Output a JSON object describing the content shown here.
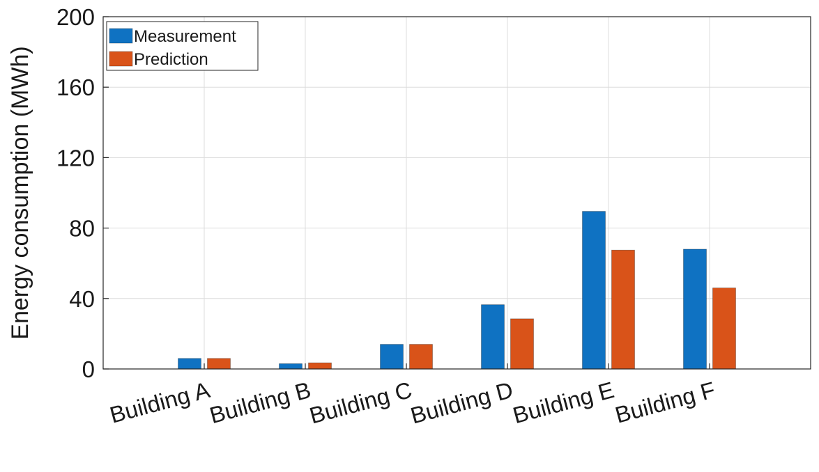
{
  "chart_data": {
    "type": "bar",
    "categories": [
      "Building A",
      "Building B",
      "Building C",
      "Building D",
      "Building E",
      "Building F"
    ],
    "series": [
      {
        "name": "Measurement",
        "color": "#0f72c2",
        "values": [
          6,
          3,
          14,
          36.5,
          89.5,
          68
        ]
      },
      {
        "name": "Prediction",
        "color": "#d95319",
        "values": [
          6,
          3.5,
          14,
          28.5,
          67.5,
          46
        ]
      }
    ],
    "ylabel": "Energy consumption (MWh)",
    "xlabel": "",
    "ylim": [
      0,
      200
    ],
    "yticks": [
      0,
      40,
      80,
      120,
      160,
      200
    ],
    "grid": true,
    "legend": "top-left"
  }
}
